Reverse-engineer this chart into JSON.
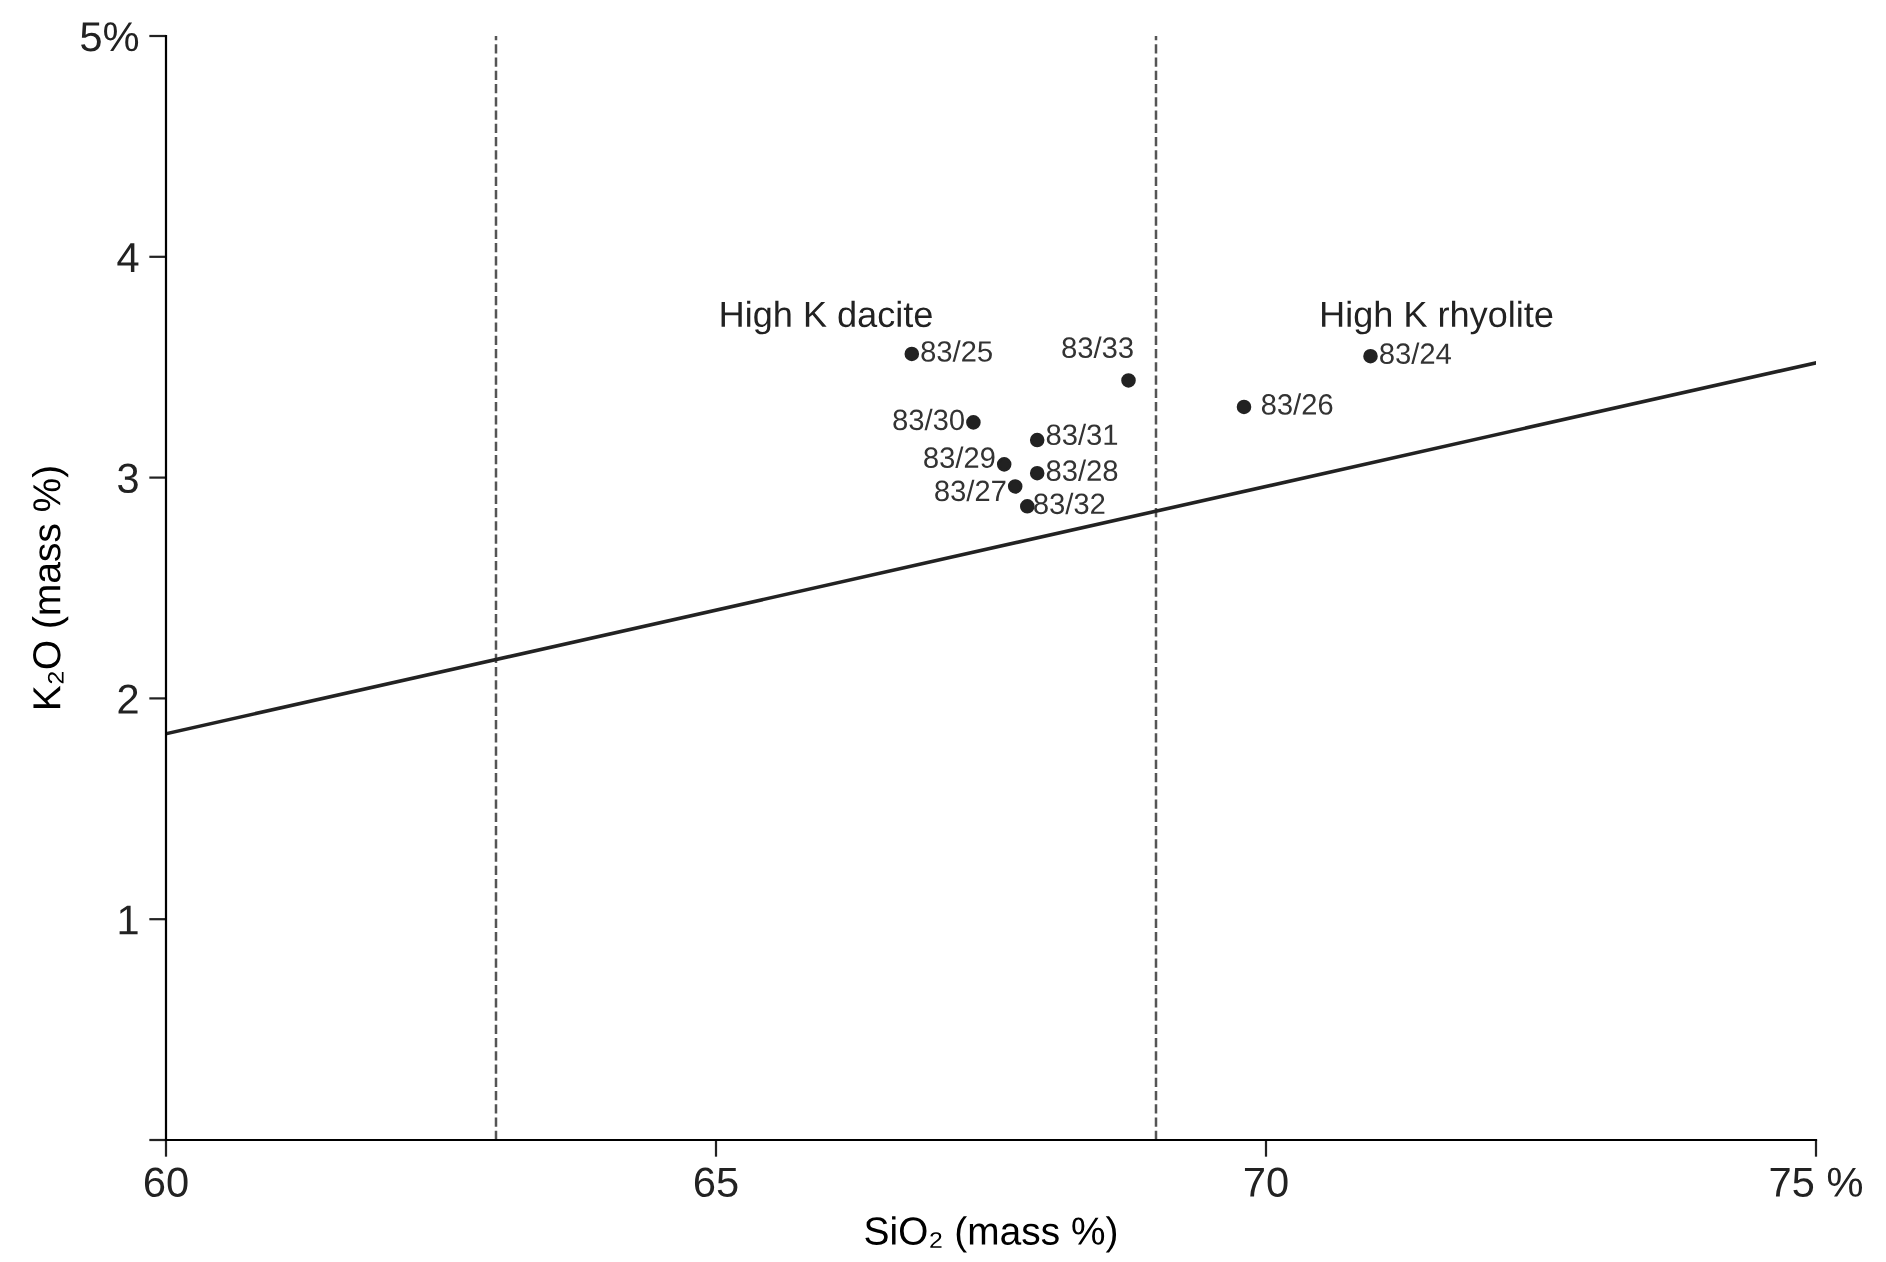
{
  "chart_data": {
    "type": "scatter",
    "xlabel": "SiO₂ (mass %)",
    "ylabel": "K₂O (mass %)",
    "xlim": [
      60,
      75
    ],
    "ylim": [
      0,
      5
    ],
    "xticks": [
      60,
      65,
      70,
      {
        "value": 75,
        "label": "75 %"
      }
    ],
    "yticks": [
      {
        "value": 0,
        "label": null
      },
      1,
      2,
      3,
      4,
      {
        "value": 5,
        "label": "5%"
      }
    ],
    "grid": false,
    "marker": "circle",
    "series": [
      {
        "color": "#222222",
        "x": [
          66.78,
          68.75,
          70.95,
          67.34,
          69.8,
          67.92,
          67.62,
          67.92,
          67.72,
          67.83
        ],
        "values": [
          3.56,
          3.44,
          3.55,
          3.25,
          3.32,
          3.17,
          3.06,
          3.02,
          2.96,
          2.87
        ],
        "value_labels": [
          "83/25",
          "83/33",
          "83/24",
          "83/30",
          "83/26",
          "83/31",
          "83/29",
          "83/28",
          "83/27",
          "83/32"
        ]
      },
      {
        "type": "line",
        "color": "#222222",
        "x": [
          60,
          75
        ],
        "values": [
          1.84,
          3.52
        ],
        "marker": "none",
        "line_style": "solid"
      }
    ],
    "ref_lines": [
      {
        "axis": "x",
        "value": 63,
        "color": "#555555",
        "line_style": "dashed"
      },
      {
        "axis": "x",
        "value": 69,
        "color": "#555555",
        "line_style": "dashed"
      }
    ],
    "annotations": [
      "High K dacite",
      "High K rhyolite"
    ]
  }
}
